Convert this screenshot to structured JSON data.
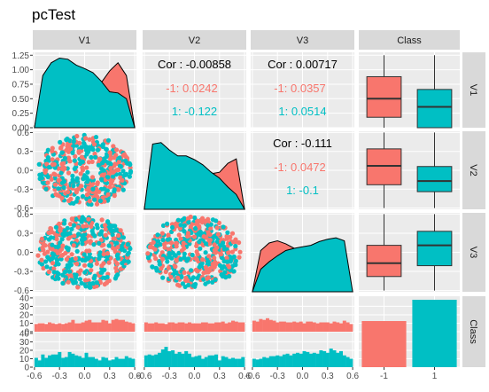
{
  "chart_data": {
    "type": "pairs",
    "title": "pcTest",
    "variables": [
      "V1",
      "V2",
      "V3",
      "Class"
    ],
    "group_levels": [
      "-1",
      "1"
    ],
    "colors": {
      "group_-1": "#F8766D",
      "group_1": "#00BFC4",
      "panel_bg": "#EBEBEB",
      "strip_bg": "#D9D9D9",
      "grid": "#FFFFFF"
    },
    "axes": {
      "x_ticks": [
        "-0.6",
        "-0.3",
        "0.0",
        "0.3",
        "0.6"
      ],
      "x_range": [
        -0.62,
        0.62
      ],
      "v1_density_ticks": [
        "0.00",
        "0.25",
        "0.50",
        "0.75",
        "1.00",
        "1.25"
      ],
      "v1_density_range": [
        0,
        1.3
      ],
      "y_ticks": [
        "-0.6",
        "-0.3",
        "0.0",
        "0.3",
        "0.6"
      ],
      "y_range": [
        -0.62,
        0.62
      ],
      "count_ticks": [
        "0",
        "10",
        "20",
        "30",
        "40"
      ],
      "count_range": [
        0,
        42
      ],
      "class_ticks": [
        "-1",
        "1"
      ]
    },
    "correlations": [
      {
        "pair": "V1-V2",
        "overall": "Cor : -0.00858",
        "group_-1": "-1: 0.0242",
        "group_1": "1: -0.122"
      },
      {
        "pair": "V1-V3",
        "overall": "Cor : 0.00717",
        "group_-1": "-1: 0.0357",
        "group_1": "1: 0.0514"
      },
      {
        "pair": "V2-V3",
        "overall": "Cor : -0.111",
        "group_-1": "-1: 0.0472",
        "group_1": "1: -0.1"
      }
    ],
    "densities": {
      "x": [
        -0.6,
        -0.5,
        -0.4,
        -0.3,
        -0.2,
        -0.1,
        0.0,
        0.1,
        0.2,
        0.3,
        0.4,
        0.5,
        0.6
      ],
      "V1": {
        "group_-1": [
          0.0,
          0.78,
          0.95,
          1.0,
          0.97,
          0.88,
          0.86,
          0.75,
          0.78,
          0.98,
          1.12,
          0.9,
          0.0
        ],
        "group_1": [
          0.0,
          0.9,
          1.12,
          1.2,
          1.18,
          1.08,
          1.02,
          0.95,
          0.8,
          0.62,
          0.6,
          0.5,
          0.0
        ]
      },
      "V2": {
        "group_-1": [
          0.0,
          0.72,
          0.7,
          0.65,
          0.62,
          0.58,
          0.55,
          0.52,
          0.48,
          0.5,
          0.62,
          0.68,
          0.0
        ],
        "group_1": [
          0.0,
          0.88,
          0.9,
          0.8,
          0.72,
          0.72,
          0.67,
          0.6,
          0.5,
          0.42,
          0.3,
          0.2,
          0.0
        ]
      },
      "V3": {
        "group_-1": [
          0.0,
          0.55,
          0.65,
          0.68,
          0.64,
          0.58,
          0.56,
          0.55,
          0.52,
          0.5,
          0.45,
          0.42,
          0.0
        ],
        "group_1": [
          0.0,
          0.3,
          0.4,
          0.48,
          0.55,
          0.58,
          0.6,
          0.62,
          0.67,
          0.7,
          0.72,
          0.68,
          0.0
        ]
      }
    },
    "boxplots": {
      "V1": {
        "group_-1": {
          "min": -0.6,
          "q1": 0.18,
          "median": 0.5,
          "q3": 0.88,
          "max": 1.25
        },
        "group_1": {
          "min": -0.6,
          "q1": 0.0,
          "median": 0.36,
          "q3": 0.66,
          "max": 1.25
        }
      },
      "V2": {
        "group_-1": {
          "min": -0.6,
          "q1": -0.23,
          "median": 0.07,
          "q3": 0.34,
          "max": 0.6
        },
        "group_1": {
          "min": -0.6,
          "q1": -0.34,
          "median": -0.17,
          "q3": 0.06,
          "max": 0.6
        }
      },
      "V3": {
        "group_-1": {
          "min": -0.6,
          "q1": -0.38,
          "median": -0.17,
          "q3": 0.11,
          "max": 0.6
        },
        "group_1": {
          "min": -0.6,
          "q1": -0.21,
          "median": 0.11,
          "q3": 0.33,
          "max": 0.6
        }
      }
    },
    "class_counts": {
      "group_-1": 13,
      "group_1": 19
    },
    "histograms": {
      "bin_start": -0.6,
      "bin_width": 0.04,
      "V1": {
        "group_-1": [
          9,
          10,
          10,
          9,
          11,
          10,
          9,
          10,
          9,
          10,
          11,
          14,
          10,
          10,
          11,
          13,
          14,
          11,
          11,
          11,
          14,
          13,
          10,
          14,
          15,
          14,
          14,
          12,
          11,
          10
        ],
        "group_1": [
          11,
          8,
          15,
          11,
          14,
          15,
          15,
          18,
          11,
          12,
          18,
          16,
          14,
          13,
          11,
          17,
          12,
          12,
          10,
          8,
          12,
          11,
          8,
          9,
          12,
          10,
          10,
          13,
          11,
          10
        ]
      },
      "V2": {
        "group_-1": [
          11,
          10,
          10,
          11,
          10,
          10,
          9,
          11,
          11,
          10,
          11,
          11,
          10,
          11,
          10,
          10,
          10,
          11,
          11,
          10,
          10,
          11,
          11,
          12,
          10,
          11,
          13,
          12,
          11,
          11
        ],
        "group_1": [
          14,
          15,
          14,
          15,
          17,
          21,
          24,
          19,
          20,
          16,
          18,
          16,
          19,
          16,
          12,
          13,
          14,
          10,
          12,
          14,
          14,
          15,
          8,
          13,
          12,
          10,
          11,
          10,
          10,
          12
        ]
      },
      "V3": {
        "group_-1": [
          13,
          12,
          15,
          14,
          16,
          14,
          13,
          11,
          12,
          12,
          11,
          11,
          12,
          11,
          12,
          10,
          12,
          12,
          11,
          10,
          11,
          11,
          11,
          10,
          12,
          11,
          10,
          13,
          11,
          9
        ],
        "group_1": [
          10,
          9,
          10,
          12,
          11,
          13,
          13,
          14,
          13,
          15,
          16,
          14,
          16,
          17,
          16,
          19,
          18,
          16,
          17,
          16,
          20,
          19,
          17,
          22,
          20,
          17,
          19,
          14,
          12,
          10
        ]
      }
    }
  }
}
